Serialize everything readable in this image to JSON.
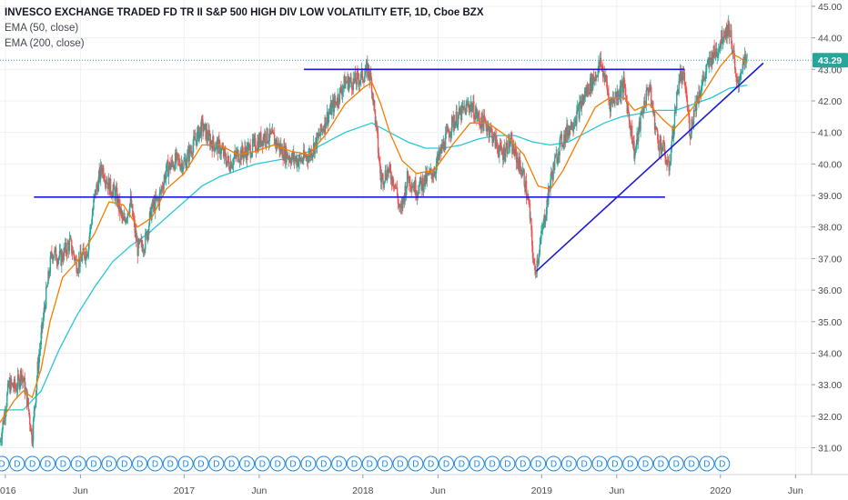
{
  "legend": {
    "title": "INVESCO EXCHANGE TRADED FD TR II S&P 500 HIGH DIV LOW VOLATILITY ETF, 1D, Cboe BZX",
    "ema50": "EMA (50, close)",
    "ema200": "EMA (200, close)"
  },
  "colors": {
    "up": "#26a69a",
    "down": "#ef5350",
    "ema50": "#f57c00",
    "ema200": "#26c6da",
    "trendline": "#1a1ad6",
    "last_price": "#26a69a",
    "dividend": "#1e88e5",
    "grid": "#eef0f3"
  },
  "icons": {
    "dividend_marker": "dividend-d-icon"
  },
  "chart_data": {
    "type": "candlestick",
    "title": "INVESCO EXCHANGE TRADED FD TR II S&P 500 HIGH DIV LOW VOLATILITY ETF, 1D, Cboe BZX",
    "y_ticks": [
      31,
      32,
      33,
      34,
      35,
      36,
      37,
      38,
      39,
      40,
      41,
      42,
      43,
      44,
      45
    ],
    "y_tick_labels": [
      "31.00",
      "32.00",
      "33.00",
      "34.00",
      "35.00",
      "36.00",
      "37.00",
      "38.00",
      "39.00",
      "40.00",
      "41.00",
      "42.00",
      "43.00",
      "44.00",
      "45.00"
    ],
    "ylim": [
      30.15,
      45.2
    ],
    "xlim": [
      2015.97,
      2020.51
    ],
    "x_ticks": [
      2016.0,
      2016.42,
      2017.0,
      2017.42,
      2018.0,
      2018.42,
      2019.0,
      2019.42,
      2020.0,
      2020.42
    ],
    "x_tick_labels": [
      "2016",
      "Jun",
      "2017",
      "Jun",
      "2018",
      "Jun",
      "2019",
      "Jun",
      "2020",
      "Jun"
    ],
    "last_price": 43.29,
    "last_price_label": "43.29",
    "price_path": [
      [
        2015.97,
        31.2
      ],
      [
        2016.02,
        33.0
      ],
      [
        2016.06,
        32.9
      ],
      [
        2016.09,
        33.4
      ],
      [
        2016.12,
        32.6
      ],
      [
        2016.15,
        31.3
      ],
      [
        2016.18,
        33.5
      ],
      [
        2016.22,
        35.5
      ],
      [
        2016.26,
        37.2
      ],
      [
        2016.31,
        37.0
      ],
      [
        2016.36,
        37.5
      ],
      [
        2016.4,
        36.8
      ],
      [
        2016.46,
        37.3
      ],
      [
        2016.5,
        39.0
      ],
      [
        2016.54,
        39.9
      ],
      [
        2016.58,
        39.3
      ],
      [
        2016.62,
        39.0
      ],
      [
        2016.66,
        38.1
      ],
      [
        2016.7,
        38.8
      ],
      [
        2016.74,
        37.3
      ],
      [
        2016.78,
        37.5
      ],
      [
        2016.82,
        38.6
      ],
      [
        2016.86,
        38.9
      ],
      [
        2016.9,
        39.8
      ],
      [
        2016.95,
        40.1
      ],
      [
        2017.0,
        40.0
      ],
      [
        2017.05,
        40.6
      ],
      [
        2017.1,
        41.2
      ],
      [
        2017.15,
        40.7
      ],
      [
        2017.2,
        40.5
      ],
      [
        2017.25,
        40.0
      ],
      [
        2017.3,
        40.3
      ],
      [
        2017.35,
        40.4
      ],
      [
        2017.4,
        40.6
      ],
      [
        2017.45,
        40.9
      ],
      [
        2017.5,
        40.8
      ],
      [
        2017.55,
        40.4
      ],
      [
        2017.6,
        40.2
      ],
      [
        2017.65,
        40.1
      ],
      [
        2017.7,
        40.3
      ],
      [
        2017.75,
        40.8
      ],
      [
        2017.8,
        41.5
      ],
      [
        2017.85,
        42.0
      ],
      [
        2017.9,
        42.6
      ],
      [
        2017.95,
        42.6
      ],
      [
        2018.0,
        42.8
      ],
      [
        2018.03,
        43.0
      ],
      [
        2018.05,
        42.5
      ],
      [
        2018.08,
        40.8
      ],
      [
        2018.1,
        39.5
      ],
      [
        2018.14,
        39.8
      ],
      [
        2018.18,
        39.4
      ],
      [
        2018.21,
        38.4
      ],
      [
        2018.25,
        39.6
      ],
      [
        2018.3,
        39.2
      ],
      [
        2018.35,
        39.5
      ],
      [
        2018.4,
        39.8
      ],
      [
        2018.45,
        40.6
      ],
      [
        2018.5,
        41.3
      ],
      [
        2018.55,
        41.6
      ],
      [
        2018.6,
        41.9
      ],
      [
        2018.65,
        41.4
      ],
      [
        2018.7,
        41.2
      ],
      [
        2018.75,
        40.6
      ],
      [
        2018.78,
        40.3
      ],
      [
        2018.82,
        40.7
      ],
      [
        2018.86,
        40.2
      ],
      [
        2018.9,
        39.6
      ],
      [
        2018.93,
        38.6
      ],
      [
        2018.96,
        36.5
      ],
      [
        2018.98,
        37.1
      ],
      [
        2019.02,
        38.4
      ],
      [
        2019.05,
        39.5
      ],
      [
        2019.1,
        40.6
      ],
      [
        2019.15,
        41.1
      ],
      [
        2019.2,
        41.6
      ],
      [
        2019.25,
        42.3
      ],
      [
        2019.3,
        42.8
      ],
      [
        2019.33,
        43.2
      ],
      [
        2019.36,
        42.6
      ],
      [
        2019.38,
        41.9
      ],
      [
        2019.42,
        42.2
      ],
      [
        2019.46,
        42.5
      ],
      [
        2019.5,
        41.1
      ],
      [
        2019.52,
        40.3
      ],
      [
        2019.56,
        41.6
      ],
      [
        2019.6,
        42.5
      ],
      [
        2019.65,
        40.7
      ],
      [
        2019.68,
        40.5
      ],
      [
        2019.71,
        39.8
      ],
      [
        2019.74,
        41.3
      ],
      [
        2019.77,
        42.8
      ],
      [
        2019.8,
        42.6
      ],
      [
        2019.83,
        41.0
      ],
      [
        2019.86,
        41.9
      ],
      [
        2019.9,
        42.6
      ],
      [
        2019.95,
        43.4
      ],
      [
        2019.98,
        43.6
      ],
      [
        2020.02,
        44.2
      ],
      [
        2020.05,
        44.3
      ],
      [
        2020.07,
        43.6
      ],
      [
        2020.09,
        42.4
      ],
      [
        2020.12,
        43.1
      ],
      [
        2020.15,
        43.29
      ]
    ],
    "ema50_path": [
      [
        2015.97,
        31.8
      ],
      [
        2016.05,
        32.5
      ],
      [
        2016.1,
        32.8
      ],
      [
        2016.15,
        32.6
      ],
      [
        2016.2,
        33.5
      ],
      [
        2016.25,
        35.0
      ],
      [
        2016.32,
        36.4
      ],
      [
        2016.4,
        36.9
      ],
      [
        2016.5,
        37.8
      ],
      [
        2016.58,
        38.8
      ],
      [
        2016.66,
        38.7
      ],
      [
        2016.74,
        38.0
      ],
      [
        2016.82,
        38.3
      ],
      [
        2016.9,
        39.2
      ],
      [
        2017.0,
        39.7
      ],
      [
        2017.1,
        40.6
      ],
      [
        2017.2,
        40.6
      ],
      [
        2017.3,
        40.3
      ],
      [
        2017.4,
        40.4
      ],
      [
        2017.5,
        40.6
      ],
      [
        2017.6,
        40.4
      ],
      [
        2017.7,
        40.3
      ],
      [
        2017.8,
        41.0
      ],
      [
        2017.9,
        41.9
      ],
      [
        2018.0,
        42.4
      ],
      [
        2018.05,
        42.6
      ],
      [
        2018.1,
        41.9
      ],
      [
        2018.15,
        41.0
      ],
      [
        2018.22,
        40.1
      ],
      [
        2018.3,
        39.7
      ],
      [
        2018.4,
        39.8
      ],
      [
        2018.5,
        40.6
      ],
      [
        2018.6,
        41.3
      ],
      [
        2018.7,
        41.3
      ],
      [
        2018.8,
        40.9
      ],
      [
        2018.9,
        40.3
      ],
      [
        2018.98,
        39.3
      ],
      [
        2019.05,
        39.2
      ],
      [
        2019.12,
        39.8
      ],
      [
        2019.2,
        40.7
      ],
      [
        2019.3,
        41.8
      ],
      [
        2019.38,
        42.1
      ],
      [
        2019.46,
        42.1
      ],
      [
        2019.52,
        41.7
      ],
      [
        2019.6,
        41.9
      ],
      [
        2019.68,
        41.4
      ],
      [
        2019.74,
        41.1
      ],
      [
        2019.82,
        41.6
      ],
      [
        2019.9,
        42.2
      ],
      [
        2020.0,
        43.1
      ],
      [
        2020.06,
        43.5
      ],
      [
        2020.1,
        43.4
      ],
      [
        2020.15,
        43.2
      ]
    ],
    "ema200_path": [
      [
        2015.97,
        32.2
      ],
      [
        2016.1,
        32.2
      ],
      [
        2016.2,
        32.8
      ],
      [
        2016.3,
        34.1
      ],
      [
        2016.4,
        35.2
      ],
      [
        2016.5,
        36.1
      ],
      [
        2016.6,
        36.9
      ],
      [
        2016.7,
        37.4
      ],
      [
        2016.8,
        37.8
      ],
      [
        2016.9,
        38.3
      ],
      [
        2017.0,
        38.8
      ],
      [
        2017.1,
        39.3
      ],
      [
        2017.2,
        39.6
      ],
      [
        2017.3,
        39.8
      ],
      [
        2017.4,
        40.0
      ],
      [
        2017.5,
        40.1
      ],
      [
        2017.6,
        40.2
      ],
      [
        2017.7,
        40.4
      ],
      [
        2017.8,
        40.7
      ],
      [
        2017.9,
        41.0
      ],
      [
        2018.0,
        41.2
      ],
      [
        2018.05,
        41.3
      ],
      [
        2018.15,
        41.0
      ],
      [
        2018.25,
        40.7
      ],
      [
        2018.35,
        40.5
      ],
      [
        2018.45,
        40.5
      ],
      [
        2018.55,
        40.6
      ],
      [
        2018.65,
        40.8
      ],
      [
        2018.75,
        40.9
      ],
      [
        2018.85,
        40.9
      ],
      [
        2018.95,
        40.7
      ],
      [
        2019.05,
        40.6
      ],
      [
        2019.15,
        40.7
      ],
      [
        2019.25,
        41.0
      ],
      [
        2019.35,
        41.3
      ],
      [
        2019.45,
        41.5
      ],
      [
        2019.55,
        41.6
      ],
      [
        2019.65,
        41.7
      ],
      [
        2019.75,
        41.7
      ],
      [
        2019.85,
        41.9
      ],
      [
        2019.95,
        42.1
      ],
      [
        2020.05,
        42.4
      ],
      [
        2020.15,
        42.5
      ]
    ],
    "trendlines": [
      {
        "name": "upper-resistance-line",
        "from": [
          2017.67,
          43.0
        ],
        "to": [
          2019.8,
          43.0
        ]
      },
      {
        "name": "lower-support-line",
        "from": [
          2016.16,
          38.95
        ],
        "to": [
          2019.69,
          38.95
        ]
      },
      {
        "name": "rising-support-line",
        "from": [
          2018.97,
          36.6
        ],
        "to": [
          2020.24,
          43.2
        ]
      }
    ],
    "dividend_marker_label": "D",
    "dividend_marker_count": 48,
    "dividend_marker_range": [
      2015.98,
      2020.01
    ]
  }
}
